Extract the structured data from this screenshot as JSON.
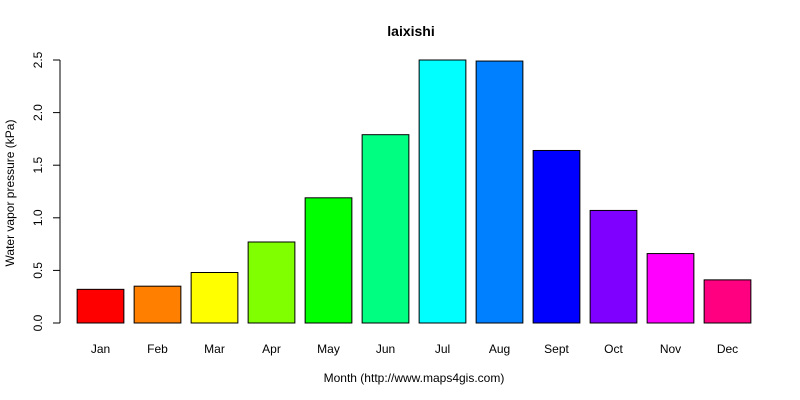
{
  "chart_data": {
    "type": "bar",
    "title": "laixishi",
    "xlabel": "Month (http://www.maps4gis.com)",
    "ylabel": "Water vapor pressure (kPa)",
    "ylim": [
      0,
      2.5
    ],
    "yticks": [
      0.0,
      0.5,
      1.0,
      1.5,
      2.0,
      2.5
    ],
    "ytick_labels": [
      "0.0",
      "0.5",
      "1.0",
      "1.5",
      "2.0",
      "2.5"
    ],
    "grid": false,
    "legend": "none",
    "categories": [
      "Jan",
      "Feb",
      "Mar",
      "Apr",
      "May",
      "Jun",
      "Jul",
      "Aug",
      "Sept",
      "Oct",
      "Nov",
      "Dec"
    ],
    "values": [
      0.32,
      0.35,
      0.48,
      0.77,
      1.19,
      1.79,
      2.5,
      2.49,
      1.64,
      1.07,
      0.66,
      0.41
    ],
    "colors": [
      "#ff0000",
      "#ff8000",
      "#ffff00",
      "#80ff00",
      "#00ff00",
      "#00ff80",
      "#00ffff",
      "#0080ff",
      "#0000ff",
      "#8000ff",
      "#ff00ff",
      "#ff0080"
    ]
  }
}
